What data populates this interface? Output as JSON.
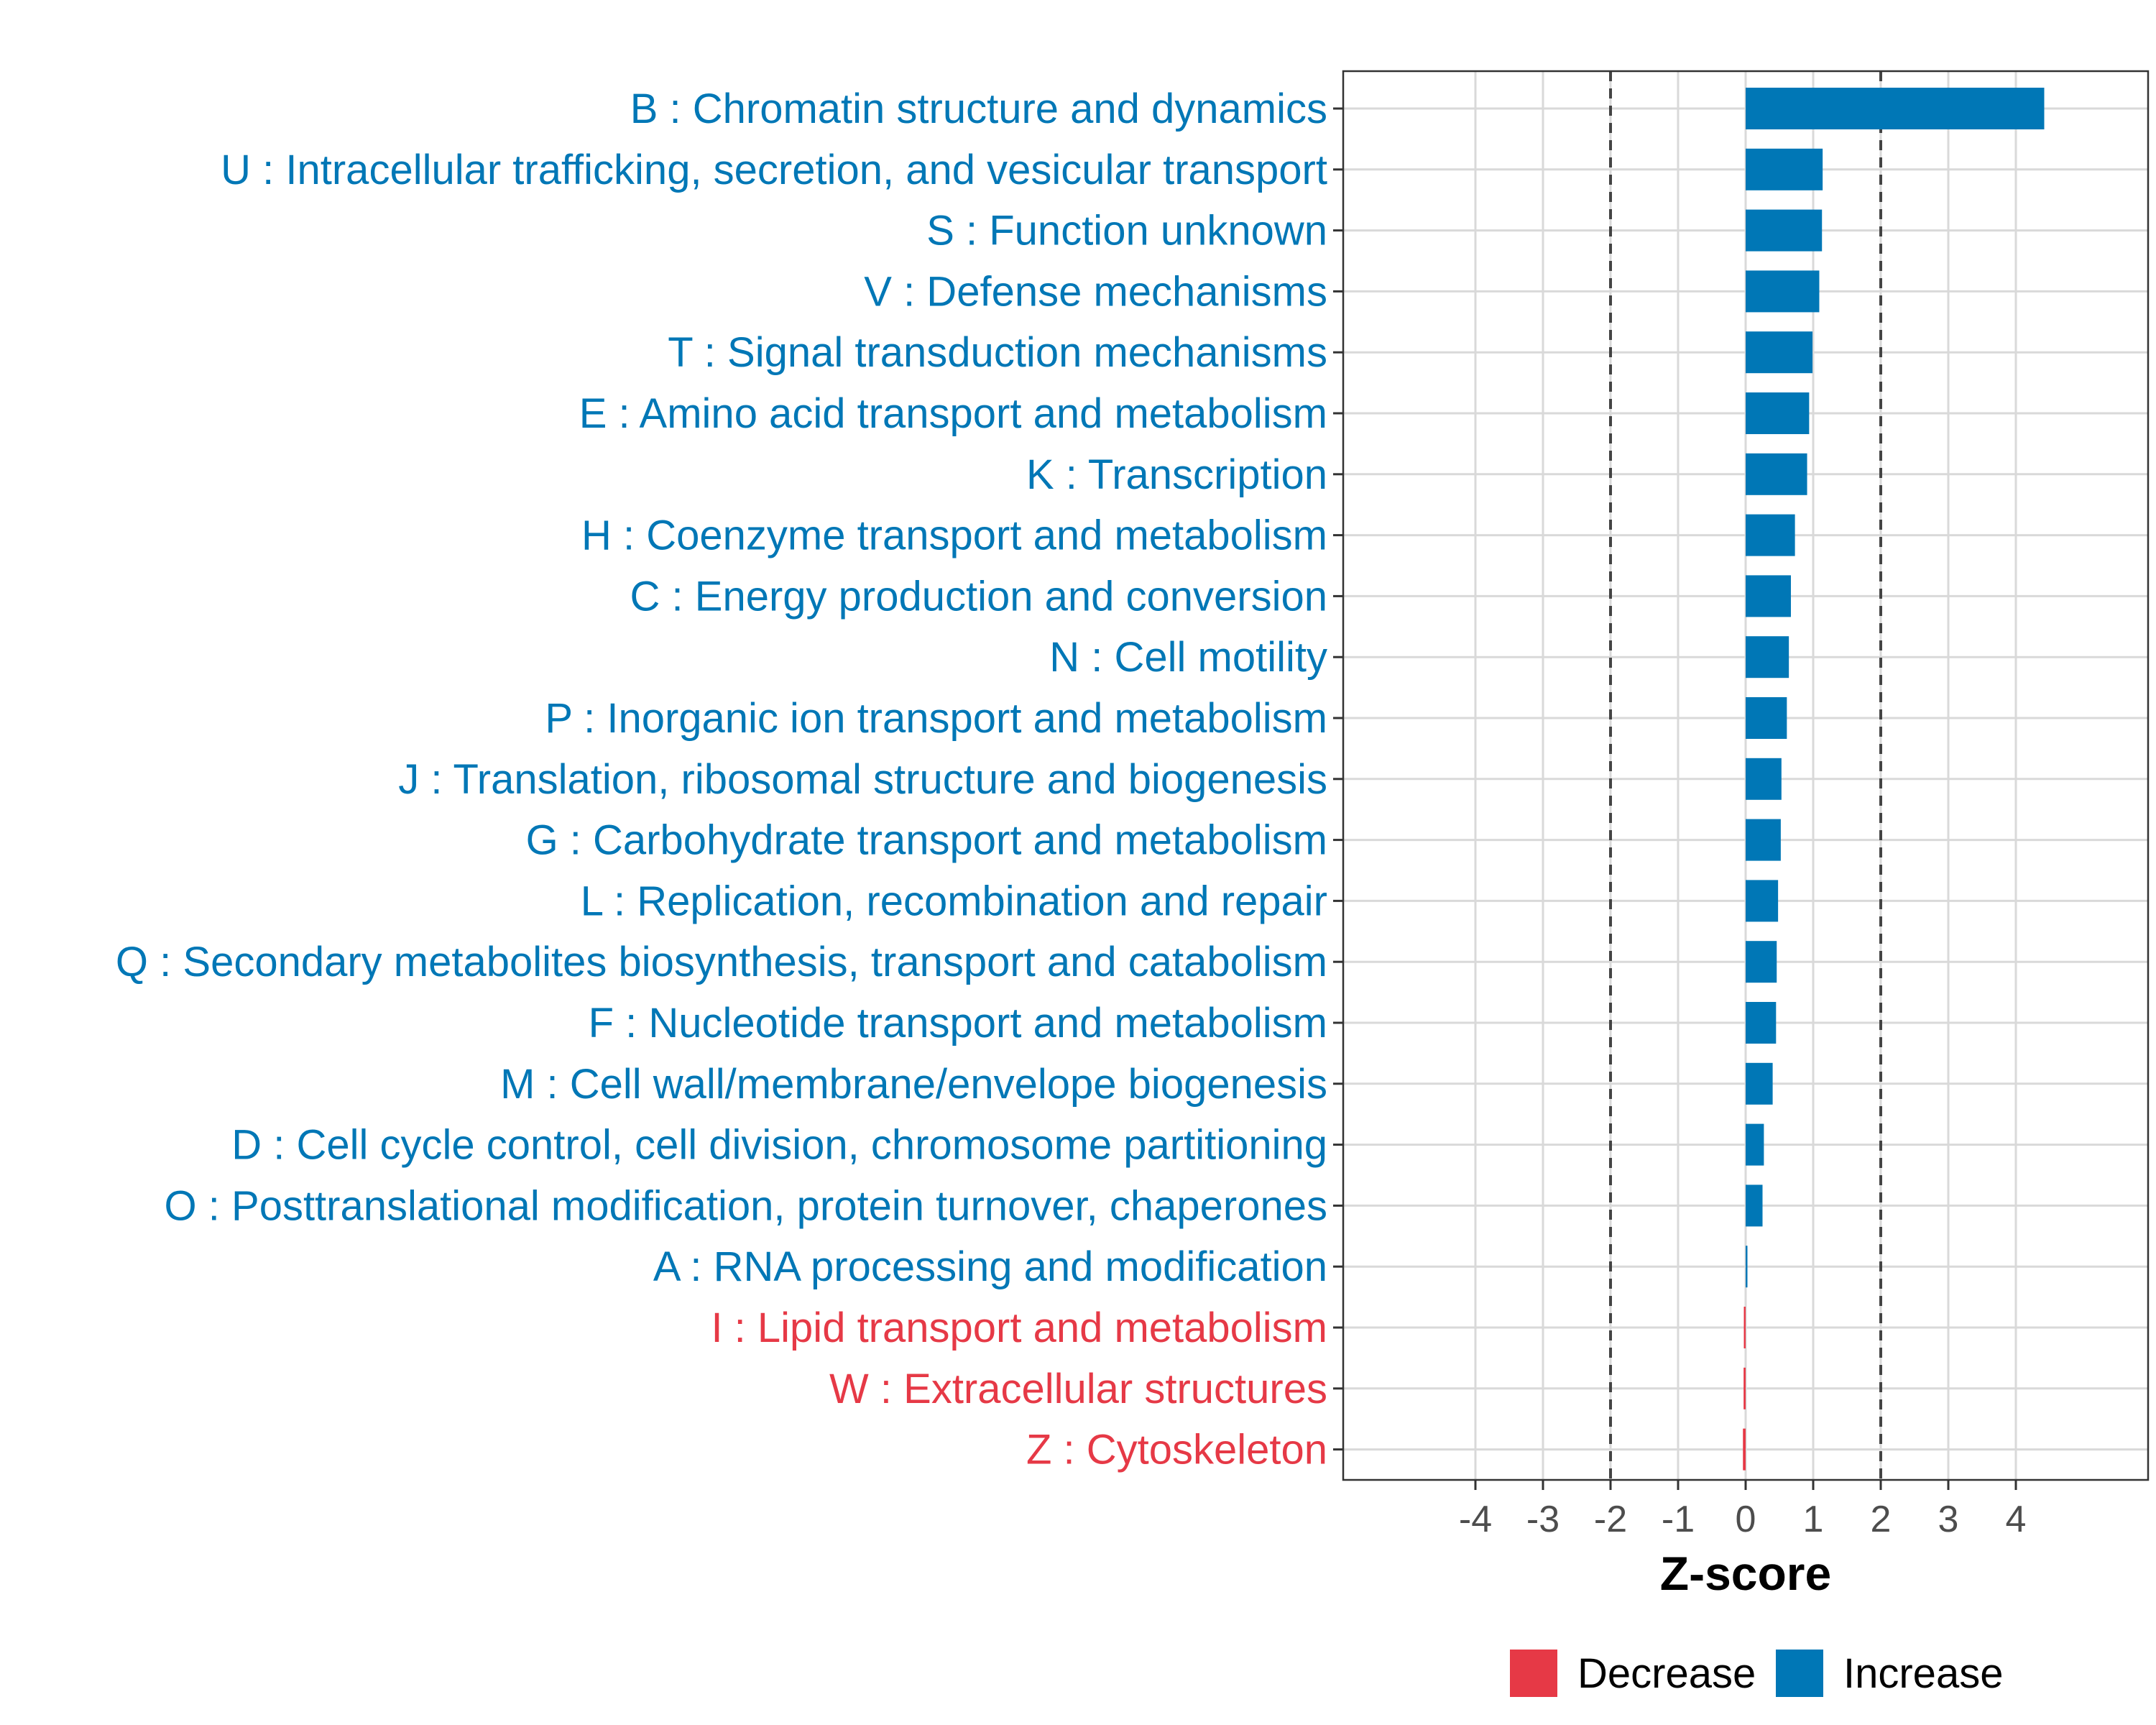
{
  "chart_data": {
    "type": "bar",
    "orientation": "horizontal",
    "title": "",
    "xlabel": "Z-score",
    "ylabel": "",
    "xlim": [
      -6,
      6
    ],
    "xticks": [
      -4,
      -3,
      -2,
      -1,
      0,
      1,
      2,
      3,
      4
    ],
    "reference_lines": [
      -2,
      2
    ],
    "grid": true,
    "legend_position": "bottom",
    "legend": [
      {
        "label": "Decrease",
        "color": "#e63946"
      },
      {
        "label": "Increase",
        "color": "#0077b6"
      }
    ],
    "categories": [
      "B : Chromatin structure and dynamics",
      "U : Intracellular trafficking, secretion, and vesicular transport",
      "S : Function unknown",
      "V : Defense mechanisms",
      "T : Signal transduction mechanisms",
      "E : Amino acid transport and metabolism",
      "K : Transcription",
      "H : Coenzyme transport and metabolism",
      "C : Energy production and conversion",
      "N : Cell motility",
      "P : Inorganic ion transport and metabolism",
      "J : Translation, ribosomal structure and biogenesis",
      "G : Carbohydrate transport and metabolism",
      "L : Replication, recombination and repair",
      "Q : Secondary metabolites biosynthesis, transport and catabolism",
      "F : Nucleotide transport and metabolism",
      "M : Cell wall/membrane/envelope biogenesis",
      "D : Cell cycle control, cell division, chromosome partitioning",
      "O : Posttranslational modification, protein turnover, chaperones",
      "A : RNA processing and modification",
      "I : Lipid transport and metabolism",
      "W : Extracellular structures",
      "Z : Cytoskeleton"
    ],
    "values": [
      4.42,
      1.14,
      1.13,
      1.09,
      0.99,
      0.94,
      0.91,
      0.73,
      0.67,
      0.64,
      0.61,
      0.53,
      0.52,
      0.48,
      0.46,
      0.45,
      0.4,
      0.27,
      0.25,
      0.02,
      -0.01,
      -0.03,
      -0.04
    ],
    "direction": [
      "Increase",
      "Increase",
      "Increase",
      "Increase",
      "Increase",
      "Increase",
      "Increase",
      "Increase",
      "Increase",
      "Increase",
      "Increase",
      "Increase",
      "Increase",
      "Increase",
      "Increase",
      "Increase",
      "Increase",
      "Increase",
      "Increase",
      "Increase",
      "Decrease",
      "Decrease",
      "Decrease"
    ]
  }
}
